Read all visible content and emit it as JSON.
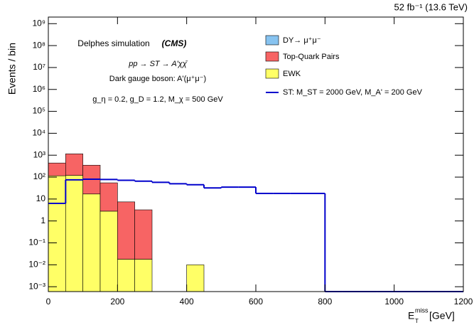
{
  "chart_data": {
    "type": "stacked_histogram",
    "lumi_label": "52 fb⁻¹ (13.6 TeV)",
    "annotations": [
      "Delphes simulation",
      "(CMS)",
      "pp → ST → A'χχ̄",
      "Dark gauge boson: A'(μ⁺μ⁻)",
      "g_η = 0.2, g_D = 1.2, M_χ = 500 GeV"
    ],
    "y_label": "Events / bin",
    "x_label": {
      "base": "E",
      "sub": "T",
      "sup": "miss",
      "unit": "[GeV]"
    },
    "bins": [
      0,
      50,
      100,
      150,
      200,
      250,
      300,
      350,
      400,
      450,
      500,
      550,
      600,
      650,
      700,
      750,
      800,
      850,
      900,
      950,
      1000,
      1050,
      1100,
      1150,
      1200
    ],
    "series": [
      {
        "name": "EWK",
        "color": "#ffff66",
        "values": [
          115,
          120,
          17,
          2.8,
          0.018,
          0.018,
          0,
          0,
          0.01,
          0,
          0,
          0,
          0,
          0,
          0,
          0,
          0,
          0,
          0,
          0,
          0,
          0,
          0,
          0
        ]
      },
      {
        "name": "Top-Quark Pairs",
        "color": "#f76464",
        "values": [
          325,
          1030,
          333,
          52,
          7.4,
          3.2,
          0,
          0,
          0,
          0,
          0,
          0,
          0,
          0,
          0,
          0,
          0,
          0,
          0,
          0,
          0,
          0,
          0,
          0
        ]
      },
      {
        "name": "DY→ μ⁺μ⁻",
        "color": "#87c3f0",
        "values": [
          0,
          0,
          0,
          0,
          0,
          0,
          0,
          0,
          0,
          0,
          0,
          0,
          0,
          0,
          0,
          0,
          0,
          0,
          0,
          0,
          0,
          0,
          0,
          0
        ]
      }
    ],
    "signal": {
      "name": "ST: M_ST = 2000 GeV, M_A' = 200 GeV",
      "color": "#0000cc",
      "values": [
        6.3,
        75,
        80,
        78,
        72,
        65,
        58,
        50,
        45,
        32,
        35,
        35,
        18,
        18,
        18,
        18,
        0,
        0,
        0,
        0,
        0,
        0,
        0,
        0
      ]
    },
    "xlim": [
      0,
      1200
    ],
    "xticks": [
      0,
      200,
      400,
      600,
      800,
      1000,
      1200
    ],
    "ylim": [
      0.0006,
      2000000000
    ],
    "log_y": true,
    "yticks": [
      {
        "value": 0.001,
        "label": "10⁻³"
      },
      {
        "value": 0.01,
        "label": "10⁻²"
      },
      {
        "value": 0.1,
        "label": "10⁻¹"
      },
      1,
      10,
      {
        "value": 100,
        "label": "10²"
      },
      {
        "value": 1000,
        "label": "10³"
      },
      {
        "value": 10000,
        "label": "10⁴"
      },
      {
        "value": 100000,
        "label": "10⁵"
      },
      {
        "value": 1000000,
        "label": "10⁶"
      },
      {
        "value": 10000000,
        "label": "10⁷"
      },
      {
        "value": 100000000,
        "label": "10⁸"
      },
      {
        "value": 1000000000,
        "label": "10⁹"
      }
    ]
  }
}
